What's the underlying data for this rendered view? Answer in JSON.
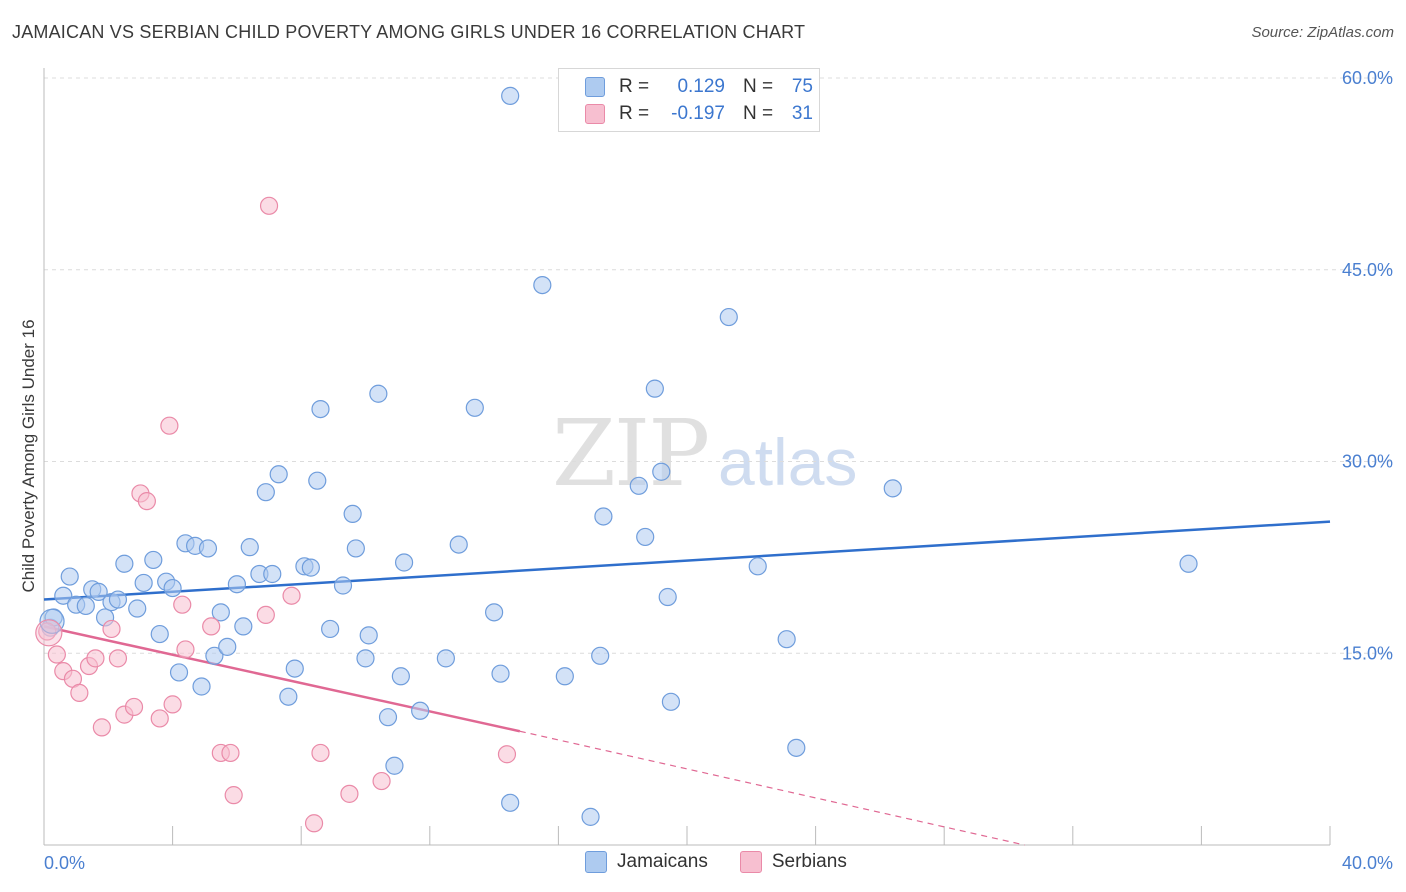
{
  "title": "JAMAICAN VS SERBIAN CHILD POVERTY AMONG GIRLS UNDER 16 CORRELATION CHART",
  "source": "Source: ZipAtlas.com",
  "watermark": {
    "zip": "ZIP",
    "atlas": "atlas"
  },
  "legend": {
    "rows": [
      {
        "r_label": "R =",
        "r_value": "0.129",
        "n_label": "N =",
        "n_value": "75"
      },
      {
        "r_label": "R =",
        "r_value": "-0.197",
        "n_label": "N =",
        "n_value": "31"
      }
    ]
  },
  "bottom_legend": {
    "jamaicans": "Jamaicans",
    "serbians": "Serbians"
  },
  "colors": {
    "jamaicans_fill": "#aecbf0",
    "jamaicans_stroke": "#6f9ddc",
    "jamaicans_line": "#2f6fcc",
    "serbians_fill": "#f7bfd0",
    "serbians_stroke": "#ea8aa8",
    "serbians_line": "#e06893",
    "grid": "#dcdcdc",
    "axis_text": "#4a7fd0"
  },
  "chart_data": {
    "type": "scatter",
    "title": "JAMAICAN VS SERBIAN CHILD POVERTY AMONG GIRLS UNDER 16 CORRELATION CHART",
    "xlabel": "",
    "ylabel": "Child Poverty Among Girls Under 16",
    "xlim": [
      0,
      40
    ],
    "ylim": [
      0,
      60
    ],
    "x_tick_labels": [
      "0.0%",
      "40.0%"
    ],
    "y_tick_values": [
      15,
      30,
      45,
      60
    ],
    "y_tick_labels": [
      "15.0%",
      "30.0%",
      "45.0%",
      "60.0%"
    ],
    "grid": true,
    "series": [
      {
        "name": "Jamaicans",
        "points": [
          [
            0.2,
            17.0
          ],
          [
            0.3,
            17.8
          ],
          [
            0.6,
            19.5
          ],
          [
            0.8,
            21.0
          ],
          [
            1.0,
            18.8
          ],
          [
            1.3,
            18.7
          ],
          [
            1.5,
            20.0
          ],
          [
            1.7,
            19.8
          ],
          [
            1.9,
            17.8
          ],
          [
            2.1,
            19.0
          ],
          [
            2.3,
            19.2
          ],
          [
            2.5,
            22.0
          ],
          [
            2.9,
            18.5
          ],
          [
            3.1,
            20.5
          ],
          [
            3.4,
            22.3
          ],
          [
            3.6,
            16.5
          ],
          [
            3.8,
            20.6
          ],
          [
            4.0,
            20.1
          ],
          [
            4.2,
            13.5
          ],
          [
            4.4,
            23.6
          ],
          [
            4.7,
            23.4
          ],
          [
            4.9,
            12.4
          ],
          [
            5.1,
            23.2
          ],
          [
            5.3,
            14.8
          ],
          [
            5.5,
            18.2
          ],
          [
            5.7,
            15.5
          ],
          [
            6.0,
            20.4
          ],
          [
            6.2,
            17.1
          ],
          [
            6.4,
            23.3
          ],
          [
            6.7,
            21.2
          ],
          [
            6.9,
            27.6
          ],
          [
            7.1,
            21.2
          ],
          [
            7.3,
            29.0
          ],
          [
            7.6,
            11.6
          ],
          [
            7.8,
            13.8
          ],
          [
            8.1,
            21.8
          ],
          [
            8.3,
            21.7
          ],
          [
            8.5,
            28.5
          ],
          [
            8.6,
            34.1
          ],
          [
            8.9,
            16.9
          ],
          [
            9.3,
            20.3
          ],
          [
            9.6,
            25.9
          ],
          [
            9.7,
            23.2
          ],
          [
            10.0,
            14.6
          ],
          [
            10.1,
            16.4
          ],
          [
            10.4,
            35.3
          ],
          [
            10.7,
            10.0
          ],
          [
            10.9,
            6.2
          ],
          [
            11.1,
            13.2
          ],
          [
            11.2,
            22.1
          ],
          [
            11.7,
            10.5
          ],
          [
            12.5,
            14.6
          ],
          [
            12.9,
            23.5
          ],
          [
            13.4,
            34.2
          ],
          [
            14.0,
            18.2
          ],
          [
            14.2,
            13.4
          ],
          [
            14.5,
            58.6
          ],
          [
            14.5,
            3.3
          ],
          [
            15.5,
            43.8
          ],
          [
            16.2,
            13.2
          ],
          [
            17.0,
            2.2
          ],
          [
            17.3,
            14.8
          ],
          [
            17.4,
            25.7
          ],
          [
            18.5,
            28.1
          ],
          [
            18.7,
            24.1
          ],
          [
            19.0,
            35.7
          ],
          [
            19.2,
            29.2
          ],
          [
            19.4,
            19.4
          ],
          [
            19.5,
            11.2
          ],
          [
            21.3,
            41.3
          ],
          [
            22.2,
            21.8
          ],
          [
            23.1,
            16.1
          ],
          [
            23.4,
            7.6
          ],
          [
            26.4,
            27.9
          ],
          [
            35.6,
            22.0
          ]
        ],
        "trend": {
          "x": [
            0,
            40
          ],
          "y": [
            19.2,
            25.3
          ]
        }
      },
      {
        "name": "Serbians",
        "points": [
          [
            0.1,
            16.7
          ],
          [
            0.4,
            14.9
          ],
          [
            0.6,
            13.6
          ],
          [
            0.9,
            13.0
          ],
          [
            1.1,
            11.9
          ],
          [
            1.4,
            14.0
          ],
          [
            1.6,
            14.6
          ],
          [
            1.8,
            9.2
          ],
          [
            2.1,
            16.9
          ],
          [
            2.3,
            14.6
          ],
          [
            2.5,
            10.2
          ],
          [
            2.8,
            10.8
          ],
          [
            3.0,
            27.5
          ],
          [
            3.2,
            26.9
          ],
          [
            3.6,
            9.9
          ],
          [
            3.9,
            32.8
          ],
          [
            4.0,
            11.0
          ],
          [
            4.3,
            18.8
          ],
          [
            4.4,
            15.3
          ],
          [
            5.2,
            17.1
          ],
          [
            5.5,
            7.2
          ],
          [
            5.8,
            7.2
          ],
          [
            5.9,
            3.9
          ],
          [
            6.9,
            18.0
          ],
          [
            7.0,
            50.0
          ],
          [
            7.7,
            19.5
          ],
          [
            8.4,
            1.7
          ],
          [
            8.6,
            7.2
          ],
          [
            9.5,
            4.0
          ],
          [
            10.5,
            5.0
          ],
          [
            14.4,
            7.1
          ]
        ],
        "trend": {
          "x": [
            0,
            14.8
          ],
          "y": [
            17.1,
            8.9
          ]
        },
        "trend_dashed": {
          "x": [
            14.8,
            30.5
          ],
          "y": [
            8.9,
            0.0
          ]
        }
      }
    ]
  }
}
